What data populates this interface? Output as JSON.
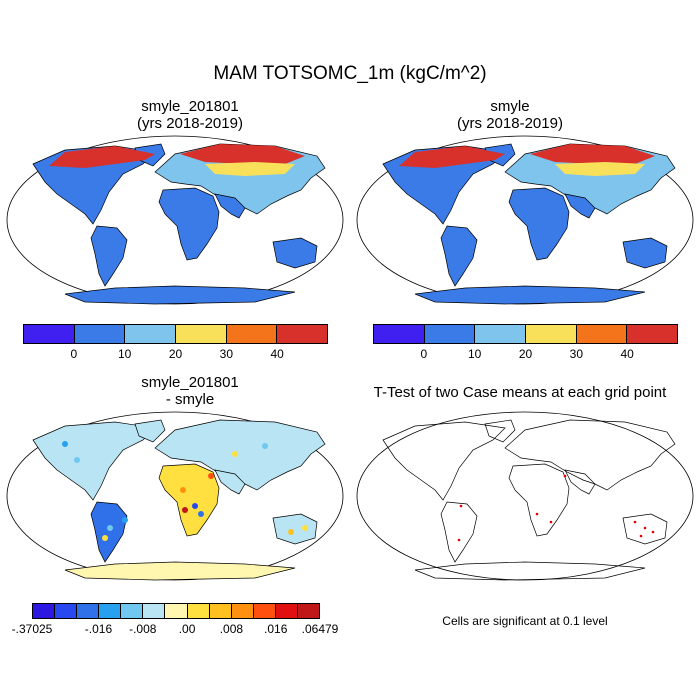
{
  "title": "MAM TOTSOMC_1m (kgC/m^2)",
  "panels": [
    {
      "title_line1": "smyle_201801",
      "title_line2": "(yrs 2018-2019)"
    },
    {
      "title_line1": "smyle",
      "title_line2": "(yrs 2018-2019)"
    },
    {
      "title_line1": "smyle_201801",
      "title_line2": "- smyle"
    },
    {
      "title_line1": "T-Test of two Case means at each grid point",
      "title_line2": ""
    }
  ],
  "colorbar_top": {
    "colors": [
      "#4020f0",
      "#3a7be8",
      "#7ec4ec",
      "#f9e05a",
      "#f4741c",
      "#d8302a"
    ],
    "labels": [
      "0",
      "10",
      "20",
      "30",
      "40"
    ]
  },
  "colorbar_diff": {
    "colors": [
      "#2c18e0",
      "#2848f0",
      "#3070e8",
      "#28a0f0",
      "#70c8f0",
      "#b8e4f4",
      "#fff6b0",
      "#ffe040",
      "#ffc020",
      "#ff9010",
      "#ff5010",
      "#e01010",
      "#c01818"
    ],
    "labels": [
      "-.37025",
      "-.016",
      "-.008",
      ".00",
      ".008",
      ".016",
      ".06479"
    ]
  },
  "significance_note": "Cells are significant at 0.1 level"
}
